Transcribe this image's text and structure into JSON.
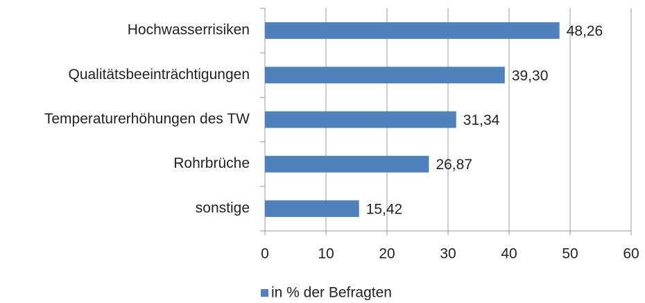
{
  "chart_data": {
    "type": "bar",
    "orientation": "horizontal",
    "categories": [
      "Hochwasserrisiken",
      "Qualitätsbeeinträchtigungen",
      "Temperaturerhöhungen des TW",
      "Rohrbrüche",
      "sonstige"
    ],
    "series": [
      {
        "name": "in % der Befragten",
        "color": "#4f81bd",
        "values": [
          48.26,
          39.3,
          31.34,
          26.87,
          15.42
        ],
        "value_labels": [
          "48,26",
          "39,30",
          "31,34",
          "26,87",
          "15,42"
        ]
      }
    ],
    "xlim": [
      0,
      60
    ],
    "xticks": [
      0,
      10,
      20,
      30,
      40,
      50,
      60
    ],
    "grid": true,
    "legend": "bottom"
  }
}
